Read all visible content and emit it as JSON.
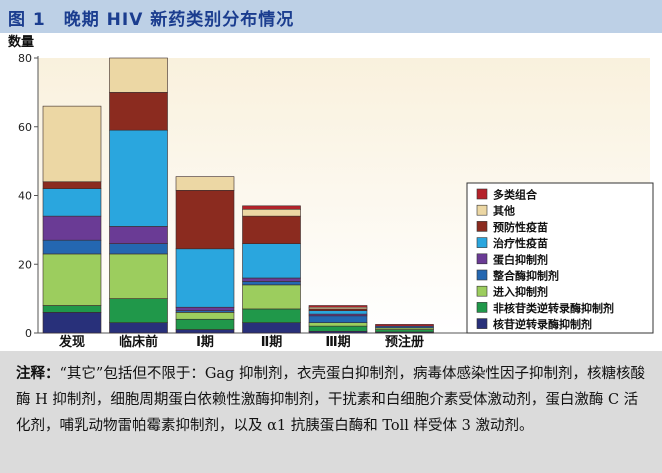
{
  "figure_title": "图 1　晚期 HIV 新药类别分布情况",
  "note": {
    "label": "注释：",
    "text": "“其它”包括但不限于：Gag 抑制剂，衣壳蛋白抑制剂，病毒体感染性因子抑制剂，核糖核酸酶 H 抑制剂，细胞周期蛋白依赖性激酶抑制剂，干扰素和白细胞介素受体激动剂，蛋白激酶 C 活化剂，哺乳动物雷帕霉素抑制剂，以及 α1 抗胰蛋白酶和 Toll 样受体 3 激动剂。"
  },
  "colors": {
    "多类组合": "#b5222a",
    "其他": "#ecd7a4",
    "预防性疫苗": "#8b2b1f",
    "治疗性疫苗": "#2aa6de",
    "蛋白抑制剂": "#6a3b95",
    "整合酶抑制剂": "#2467b1",
    "进入抑制剂": "#9ccd5e",
    "非核苷类逆转录酶抑制剂": "#20984a",
    "核苷逆转录酶抑制剂": "#28307a"
  },
  "chart_data": {
    "type": "bar",
    "stacked": true,
    "ylabel": "数量",
    "ylim": [
      0,
      80
    ],
    "yticks": [
      0,
      20,
      40,
      60,
      80
    ],
    "categories": [
      "发现",
      "临床前",
      "Ⅰ期",
      "Ⅱ期",
      "Ⅲ期",
      "预注册"
    ],
    "legend_position": "right",
    "series": [
      {
        "name": "核苷逆转录酶抑制剂",
        "values": [
          6,
          3,
          1,
          3,
          0.5,
          0.3
        ]
      },
      {
        "name": "非核苷类逆转录酶抑制剂",
        "values": [
          2,
          7,
          3,
          4,
          1.5,
          0.7
        ]
      },
      {
        "name": "进入抑制剂",
        "values": [
          15,
          13,
          2,
          7,
          1,
          0.5
        ]
      },
      {
        "name": "整合酶抑制剂",
        "values": [
          4,
          3,
          0.5,
          1,
          2,
          0.5
        ]
      },
      {
        "name": "蛋白抑制剂",
        "values": [
          7,
          5,
          1,
          1,
          0.5,
          0
        ]
      },
      {
        "name": "治疗性疫苗",
        "values": [
          8,
          28,
          17,
          10,
          1,
          0
        ]
      },
      {
        "name": "预防性疫苗",
        "values": [
          2,
          11,
          17,
          8,
          0.5,
          0
        ]
      },
      {
        "name": "其他",
        "values": [
          22,
          10,
          4,
          2,
          0.5,
          0
        ]
      },
      {
        "name": "多类组合",
        "values": [
          0,
          0,
          0,
          1,
          0.5,
          0.5
        ]
      }
    ]
  }
}
